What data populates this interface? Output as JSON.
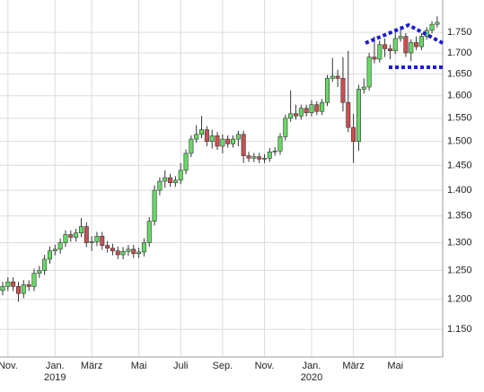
{
  "chart_data": {
    "type": "candlestick",
    "categories": [
      null,
      "Nov.",
      null,
      null,
      null,
      null,
      null,
      null,
      null,
      null,
      "Jan.",
      null,
      null,
      null,
      null,
      null,
      null,
      "März",
      null,
      null,
      null,
      null,
      null,
      null,
      null,
      null,
      "Mai",
      null,
      null,
      null,
      null,
      null,
      null,
      null,
      "Juli",
      null,
      null,
      null,
      null,
      null,
      null,
      null,
      "Sep.",
      null,
      null,
      null,
      null,
      null,
      null,
      null,
      "Nov.",
      null,
      null,
      null,
      null,
      null,
      null,
      null,
      null,
      "Jan.",
      null,
      null,
      null,
      null,
      null,
      null,
      null,
      "März",
      null,
      null,
      null,
      null,
      null,
      null,
      null,
      "Mai",
      null,
      null,
      null,
      null,
      null,
      null,
      null,
      null
    ],
    "years": [
      null,
      null,
      null,
      null,
      null,
      null,
      null,
      null,
      null,
      null,
      "2019",
      null,
      null,
      null,
      null,
      null,
      null,
      null,
      null,
      null,
      null,
      null,
      null,
      null,
      null,
      null,
      null,
      null,
      null,
      null,
      null,
      null,
      null,
      null,
      null,
      null,
      null,
      null,
      null,
      null,
      null,
      null,
      null,
      null,
      null,
      null,
      null,
      null,
      null,
      null,
      null,
      null,
      null,
      null,
      null,
      null,
      null,
      null,
      null,
      "2020",
      null,
      null,
      null,
      null,
      null,
      null,
      null,
      null,
      null,
      null,
      null,
      null,
      null,
      null,
      null,
      null,
      null,
      null,
      null,
      null,
      null,
      null,
      null,
      null
    ],
    "open": [
      1215,
      1222,
      1230,
      1222,
      1210,
      1225,
      1222,
      1245,
      1250,
      1270,
      1285,
      1288,
      1300,
      1315,
      1310,
      1318,
      1330,
      1300,
      1302,
      1312,
      1295,
      1290,
      1285,
      1278,
      1284,
      1288,
      1280,
      1283,
      1300,
      1340,
      1400,
      1418,
      1425,
      1415,
      1420,
      1440,
      1475,
      1505,
      1515,
      1525,
      1500,
      1512,
      1490,
      1505,
      1495,
      1505,
      1515,
      1470,
      1465,
      1468,
      1463,
      1465,
      1478,
      1480,
      1510,
      1550,
      1560,
      1555,
      1572,
      1562,
      1580,
      1565,
      1585,
      1640,
      1645,
      1640,
      1585,
      1530,
      1500,
      1615,
      1620,
      1690,
      1685,
      1720,
      1710,
      1705,
      1735,
      1740,
      1700,
      1725,
      1715,
      1740,
      1755,
      1770
    ],
    "high": [
      1230,
      1238,
      1238,
      1230,
      1233,
      1233,
      1253,
      1258,
      1278,
      1293,
      1296,
      1308,
      1323,
      1323,
      1326,
      1346,
      1338,
      1312,
      1320,
      1320,
      1303,
      1298,
      1293,
      1292,
      1296,
      1296,
      1291,
      1308,
      1348,
      1410,
      1426,
      1440,
      1433,
      1428,
      1455,
      1483,
      1513,
      1535,
      1555,
      1533,
      1525,
      1520,
      1515,
      1513,
      1513,
      1523,
      1523,
      1478,
      1476,
      1476,
      1473,
      1486,
      1488,
      1518,
      1558,
      1612,
      1580,
      1580,
      1580,
      1590,
      1588,
      1593,
      1648,
      1688,
      1660,
      1690,
      1705,
      1560,
      1625,
      1640,
      1700,
      1740,
      1730,
      1735,
      1720,
      1760,
      1765,
      1748,
      1733,
      1740,
      1748,
      1763,
      1778,
      1790
    ],
    "low": [
      1207,
      1214,
      1214,
      1196,
      1202,
      1214,
      1214,
      1237,
      1242,
      1262,
      1277,
      1280,
      1292,
      1302,
      1302,
      1310,
      1292,
      1285,
      1294,
      1287,
      1282,
      1277,
      1270,
      1270,
      1276,
      1272,
      1272,
      1275,
      1292,
      1332,
      1390,
      1405,
      1407,
      1407,
      1412,
      1432,
      1467,
      1497,
      1507,
      1490,
      1485,
      1482,
      1475,
      1487,
      1487,
      1490,
      1455,
      1457,
      1457,
      1455,
      1455,
      1457,
      1470,
      1472,
      1502,
      1542,
      1547,
      1547,
      1554,
      1554,
      1557,
      1557,
      1577,
      1632,
      1620,
      1565,
      1520,
      1455,
      1480,
      1605,
      1612,
      1675,
      1677,
      1690,
      1685,
      1697,
      1727,
      1690,
      1680,
      1707,
      1707,
      1732,
      1747,
      1762
    ],
    "close": [
      1222,
      1230,
      1222,
      1210,
      1225,
      1222,
      1245,
      1250,
      1270,
      1285,
      1288,
      1300,
      1315,
      1310,
      1318,
      1330,
      1300,
      1302,
      1312,
      1295,
      1290,
      1285,
      1278,
      1284,
      1288,
      1280,
      1283,
      1300,
      1340,
      1400,
      1418,
      1425,
      1415,
      1420,
      1440,
      1475,
      1505,
      1515,
      1525,
      1500,
      1512,
      1490,
      1505,
      1495,
      1505,
      1515,
      1470,
      1465,
      1468,
      1463,
      1465,
      1478,
      1480,
      1510,
      1550,
      1560,
      1555,
      1572,
      1562,
      1580,
      1565,
      1585,
      1640,
      1645,
      1640,
      1585,
      1530,
      1500,
      1615,
      1620,
      1690,
      1685,
      1720,
      1710,
      1705,
      1735,
      1740,
      1700,
      1725,
      1715,
      1740,
      1755,
      1770,
      1775
    ],
    "up_color": "#66d966",
    "down_color": "#c94f4f",
    "log_scale": true,
    "ylim": [
      1106,
      1832
    ],
    "yticks": [
      {
        "value": 1150,
        "label": "1.150"
      },
      {
        "value": 1200,
        "label": "1.200"
      },
      {
        "value": 1250,
        "label": "1.250"
      },
      {
        "value": 1300,
        "label": "1.300"
      },
      {
        "value": 1350,
        "label": "1.350"
      },
      {
        "value": 1400,
        "label": "1.400"
      },
      {
        "value": 1450,
        "label": "1.450"
      },
      {
        "value": 1500,
        "label": "1.500"
      },
      {
        "value": 1550,
        "label": "1.550"
      },
      {
        "value": 1600,
        "label": "1.600"
      },
      {
        "value": 1650,
        "label": "1.650"
      },
      {
        "value": 1700,
        "label": "1.700"
      },
      {
        "value": 1750,
        "label": "1.750"
      }
    ],
    "grid": true
  }
}
